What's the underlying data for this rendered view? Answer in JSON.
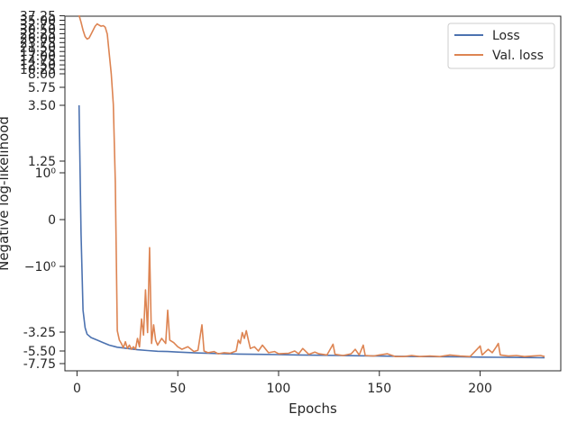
{
  "chart_data": {
    "type": "line",
    "xlabel": "Epochs",
    "ylabel": "Negative log-likelihood",
    "xlim": [
      -6,
      240
    ],
    "yscale": "symlog",
    "xticks": [
      0,
      50,
      100,
      150,
      200
    ],
    "yticks": [
      {
        "label": "-7.75",
        "value": -7.75
      },
      {
        "label": "-5.50",
        "value": -5.5
      },
      {
        "label": "-3.25",
        "value": -3.25
      },
      {
        "label": "−10⁰",
        "value": -1
      },
      {
        "label": "0",
        "value": 0
      },
      {
        "label": "10⁰",
        "value": 1
      },
      {
        "label": "1.25",
        "value": 1.25
      },
      {
        "label": "3.50",
        "value": 3.5
      },
      {
        "label": "5.75",
        "value": 5.75
      },
      {
        "label": "8.00",
        "value": 8
      },
      {
        "label": "10.25",
        "value": 10.25
      },
      {
        "label": "12.50",
        "value": 12.5
      },
      {
        "label": "14.75",
        "value": 14.75
      },
      {
        "label": "17.00",
        "value": 17
      },
      {
        "label": "19.25",
        "value": 19.25
      },
      {
        "label": "21.50",
        "value": 21.5
      },
      {
        "label": "23.75",
        "value": 23.75
      },
      {
        "label": "26.00",
        "value": 26
      },
      {
        "label": "28.25",
        "value": 28.25
      },
      {
        "label": "30.50",
        "value": 30.5
      },
      {
        "label": "32.75",
        "value": 32.75
      },
      {
        "label": "35.00",
        "value": 35
      },
      {
        "label": "37.25",
        "value": 37.25
      }
    ],
    "legend_position": "top-right",
    "grid": false,
    "series": [
      {
        "name": "Loss",
        "color": "#4c72b0",
        "points": [
          [
            1,
            3.5
          ],
          [
            2,
            -0.3
          ],
          [
            3,
            -2.5
          ],
          [
            4,
            -3.1
          ],
          [
            5,
            -3.5
          ],
          [
            7,
            -3.9
          ],
          [
            10,
            -4.2
          ],
          [
            13,
            -4.5
          ],
          [
            16,
            -4.8
          ],
          [
            20,
            -5.05
          ],
          [
            25,
            -5.2
          ],
          [
            30,
            -5.35
          ],
          [
            35,
            -5.45
          ],
          [
            40,
            -5.55
          ],
          [
            45,
            -5.6
          ],
          [
            50,
            -5.7
          ],
          [
            60,
            -5.85
          ],
          [
            70,
            -5.95
          ],
          [
            80,
            -6.05
          ],
          [
            90,
            -6.1
          ],
          [
            100,
            -6.15
          ],
          [
            110,
            -6.2
          ],
          [
            120,
            -6.25
          ],
          [
            130,
            -6.3
          ],
          [
            140,
            -6.35
          ],
          [
            150,
            -6.4
          ],
          [
            160,
            -6.45
          ],
          [
            170,
            -6.5
          ],
          [
            180,
            -6.52
          ],
          [
            190,
            -6.55
          ],
          [
            200,
            -6.6
          ],
          [
            210,
            -6.62
          ],
          [
            220,
            -6.65
          ],
          [
            232,
            -6.7
          ]
        ]
      },
      {
        "name": "Val. loss",
        "color": "#dd8452",
        "points": [
          [
            1,
            37.5
          ],
          [
            2,
            34
          ],
          [
            3,
            30
          ],
          [
            4,
            26.8
          ],
          [
            5,
            25.5
          ],
          [
            6,
            26
          ],
          [
            7,
            28
          ],
          [
            8,
            30
          ],
          [
            9,
            32
          ],
          [
            10,
            33.2
          ],
          [
            11,
            32.5
          ],
          [
            12,
            32
          ],
          [
            13,
            32.3
          ],
          [
            14,
            31.5
          ],
          [
            15,
            28
          ],
          [
            16,
            18
          ],
          [
            17,
            8
          ],
          [
            18,
            3.6
          ],
          [
            19,
            0.8
          ],
          [
            20,
            -3.2
          ],
          [
            21,
            -4.2
          ],
          [
            22,
            -4.6
          ],
          [
            23,
            -5.1
          ],
          [
            24,
            -4.4
          ],
          [
            25,
            -5.2
          ],
          [
            26,
            -4.8
          ],
          [
            27,
            -5.3
          ],
          [
            28,
            -5.0
          ],
          [
            29,
            -5.3
          ],
          [
            30,
            -4.0
          ],
          [
            31,
            -5.0
          ],
          [
            32,
            -2.8
          ],
          [
            33,
            -3.6
          ],
          [
            34,
            -1.8
          ],
          [
            35,
            -3.3
          ],
          [
            36,
            -0.6
          ],
          [
            37,
            -4.6
          ],
          [
            38,
            -3.0
          ],
          [
            39,
            -4.2
          ],
          [
            40,
            -4.8
          ],
          [
            42,
            -4.0
          ],
          [
            44,
            -4.6
          ],
          [
            45,
            -2.5
          ],
          [
            46,
            -4.2
          ],
          [
            48,
            -4.5
          ],
          [
            50,
            -5.0
          ],
          [
            52,
            -5.3
          ],
          [
            55,
            -5.0
          ],
          [
            58,
            -5.6
          ],
          [
            60,
            -5.4
          ],
          [
            62,
            -3.0
          ],
          [
            63,
            -5.5
          ],
          [
            65,
            -5.8
          ],
          [
            68,
            -5.6
          ],
          [
            70,
            -6.0
          ],
          [
            73,
            -5.8
          ],
          [
            76,
            -5.9
          ],
          [
            79,
            -5.5
          ],
          [
            80,
            -4.2
          ],
          [
            81,
            -4.6
          ],
          [
            82,
            -3.3
          ],
          [
            83,
            -4.0
          ],
          [
            84,
            -3.2
          ],
          [
            85,
            -4.2
          ],
          [
            86,
            -5.2
          ],
          [
            88,
            -5.0
          ],
          [
            90,
            -5.5
          ],
          [
            92,
            -4.8
          ],
          [
            95,
            -5.8
          ],
          [
            98,
            -5.6
          ],
          [
            100,
            -6.0
          ],
          [
            105,
            -5.9
          ],
          [
            108,
            -5.5
          ],
          [
            110,
            -6.0
          ],
          [
            112,
            -5.2
          ],
          [
            115,
            -6.1
          ],
          [
            118,
            -5.7
          ],
          [
            120,
            -6.0
          ],
          [
            124,
            -6.2
          ],
          [
            127,
            -4.7
          ],
          [
            128,
            -6.1
          ],
          [
            132,
            -6.3
          ],
          [
            136,
            -6.0
          ],
          [
            138,
            -5.3
          ],
          [
            140,
            -6.2
          ],
          [
            142,
            -4.8
          ],
          [
            143,
            -6.3
          ],
          [
            147,
            -6.4
          ],
          [
            150,
            -6.2
          ],
          [
            154,
            -6.0
          ],
          [
            158,
            -6.5
          ],
          [
            162,
            -6.5
          ],
          [
            166,
            -6.3
          ],
          [
            170,
            -6.5
          ],
          [
            175,
            -6.4
          ],
          [
            180,
            -6.5
          ],
          [
            185,
            -6.2
          ],
          [
            190,
            -6.4
          ],
          [
            195,
            -6.5
          ],
          [
            200,
            -4.9
          ],
          [
            201,
            -6.2
          ],
          [
            204,
            -5.3
          ],
          [
            206,
            -5.8
          ],
          [
            208,
            -5.0
          ],
          [
            209,
            -4.6
          ],
          [
            210,
            -6.2
          ],
          [
            214,
            -6.4
          ],
          [
            218,
            -6.3
          ],
          [
            222,
            -6.5
          ],
          [
            226,
            -6.4
          ],
          [
            230,
            -6.3
          ],
          [
            232,
            -6.5
          ]
        ]
      }
    ]
  }
}
